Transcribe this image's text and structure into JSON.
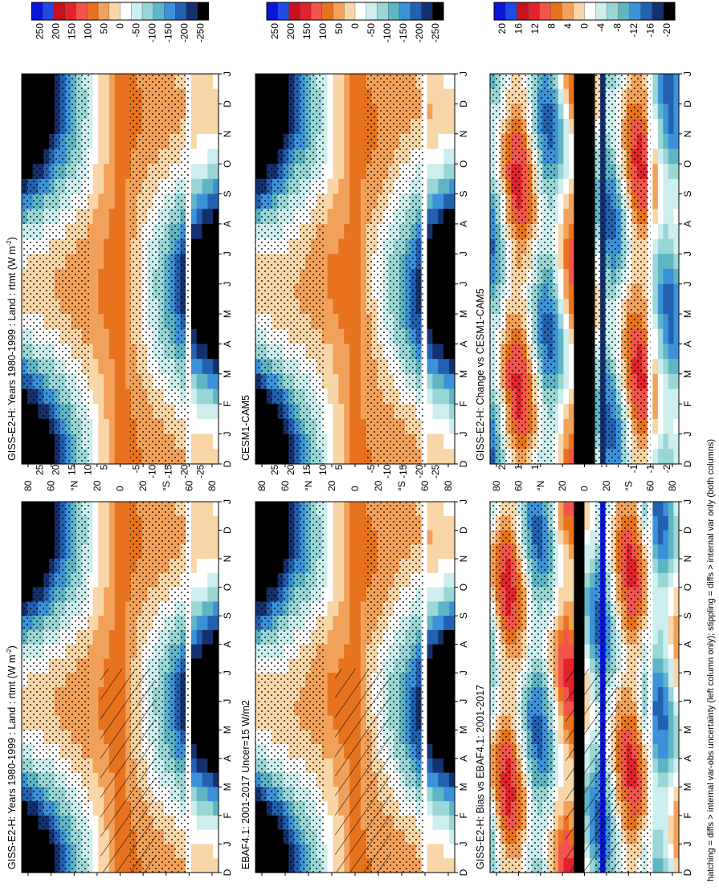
{
  "footnote": "hatching = diffs > internal var-obs uncertainty (left column only); stippling = diffs > internal var only (both columns)",
  "chart_data": [
    {
      "type": "heatmap",
      "id": "p1",
      "title": "GISS-E2-H: Years 1980-1999 : Land : rtmt (W m",
      "title_sup": "-2",
      "title_end": ")",
      "xlabel": "",
      "ylabel": "",
      "months": [
        "D",
        "J",
        "F",
        "M",
        "A",
        "M",
        "J",
        "J",
        "A",
        "S",
        "O",
        "N",
        "D",
        "J"
      ],
      "lat_ticks": [
        "80",
        "60",
        "°N",
        "20",
        "0",
        "20",
        "°S",
        "60",
        "80"
      ],
      "colorbar": [
        "250",
        "200",
        "150",
        "100",
        "50",
        "0",
        "-50",
        "-100",
        "-150",
        "-200",
        "-250"
      ],
      "scale": "flux",
      "hatching": true,
      "stippling": true
    },
    {
      "type": "heatmap",
      "id": "p2",
      "title": "GISS-E2-H: Years 1980-1999 : Land : rtmt (W m",
      "title_sup": "-2",
      "title_end": ")",
      "xlabel": "",
      "ylabel": "",
      "months": [
        "D",
        "J",
        "F",
        "M",
        "A",
        "M",
        "J",
        "J",
        "A",
        "S",
        "O",
        "N",
        "D",
        "J"
      ],
      "lat_ticks": [
        "80",
        "60",
        "°N",
        "20",
        "0",
        "20",
        "°S",
        "60",
        "80"
      ],
      "colorbar": [
        "250",
        "200",
        "150",
        "100",
        "50",
        "0",
        "-50",
        "-100",
        "-150",
        "-200",
        "-250"
      ],
      "scale": "flux",
      "hatching": false,
      "stippling": true
    },
    {
      "type": "heatmap",
      "id": "p3",
      "title": "EBAF4.1: 2001-2017 Uncer=15 W/m2",
      "title_sup": "",
      "title_end": "",
      "xlabel": "",
      "ylabel": "",
      "months": [
        "D",
        "J",
        "F",
        "M",
        "A",
        "M",
        "J",
        "J",
        "A",
        "S",
        "O",
        "N",
        "D",
        "J"
      ],
      "lat_ticks": [
        "80",
        "60",
        "°N",
        "20",
        "0",
        "20",
        "°S",
        "60",
        "80"
      ],
      "colorbar": [
        "250",
        "200",
        "150",
        "100",
        "50",
        "0",
        "-50",
        "-100",
        "-150",
        "-200",
        "-250"
      ],
      "scale": "flux",
      "hatching": true,
      "stippling": true
    },
    {
      "type": "heatmap",
      "id": "p4",
      "title": "CESM1-CAM5",
      "title_sup": "",
      "title_end": "",
      "xlabel": "",
      "ylabel": "",
      "months": [
        "D",
        "J",
        "F",
        "M",
        "A",
        "M",
        "J",
        "J",
        "A",
        "S",
        "O",
        "N",
        "D",
        "J"
      ],
      "lat_ticks": [
        "80",
        "60",
        "°N",
        "20",
        "0",
        "20",
        "°S",
        "60",
        "80"
      ],
      "colorbar": [
        "250",
        "200",
        "150",
        "100",
        "50",
        "0",
        "-50",
        "-100",
        "-150",
        "-200",
        "-250"
      ],
      "scale": "flux",
      "hatching": false,
      "stippling": true
    },
    {
      "type": "heatmap",
      "id": "p5",
      "title": "GISS-E2-H: Bias vs EBAF4.1: 2001-2017",
      "title_sup": "",
      "title_end": "",
      "xlabel": "",
      "ylabel": "",
      "months": [
        "D",
        "J",
        "F",
        "M",
        "A",
        "M",
        "J",
        "J",
        "A",
        "S",
        "O",
        "N",
        "D",
        "J"
      ],
      "lat_ticks": [
        "80",
        "60",
        "°N",
        "20",
        "0",
        "20",
        "°S",
        "60",
        "80"
      ],
      "colorbar": [
        "20",
        "16",
        "12",
        "8",
        "4",
        "0",
        "-4",
        "-8",
        "-12",
        "-16",
        "-20"
      ],
      "scale": "diff",
      "hatching": true,
      "stippling": true
    },
    {
      "type": "heatmap",
      "id": "p6",
      "title": "GISS-E2-H: Change vs CESM1-CAM5",
      "title_sup": "",
      "title_end": "",
      "xlabel": "",
      "ylabel": "",
      "months": [
        "D",
        "J",
        "F",
        "M",
        "A",
        "M",
        "J",
        "J",
        "A",
        "S",
        "O",
        "N",
        "D",
        "J"
      ],
      "lat_ticks": [
        "80",
        "60",
        "°N",
        "20",
        "0",
        "20",
        "°S",
        "60",
        "80"
      ],
      "colorbar": [
        "20",
        "16",
        "12",
        "8",
        "4",
        "0",
        "-4",
        "-8",
        "-12",
        "-16",
        "-20"
      ],
      "scale": "diff",
      "hatching": false,
      "stippling": true
    }
  ],
  "colors": {
    "palette": [
      "#0a16d8",
      "#1f4ae6",
      "#c8101e",
      "#e0232c",
      "#f2544c",
      "#e8731e",
      "#f2a15a",
      "#f8d6a8",
      "#ffffff",
      "#cdeeee",
      "#9ad6d6",
      "#5fb5c4",
      "#3c92d8",
      "#2260b0",
      "#15306e",
      "#000000"
    ],
    "ink": "#000000"
  }
}
